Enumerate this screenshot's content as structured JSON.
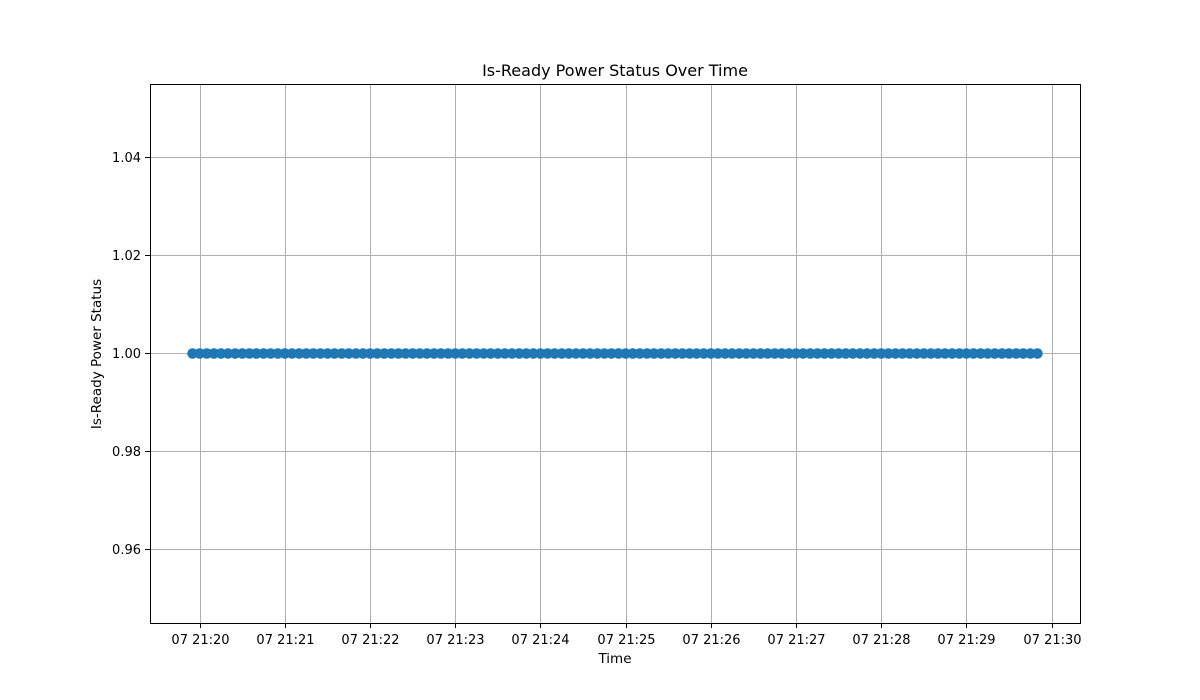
{
  "chart_data": {
    "type": "scatter",
    "title": "Is-Ready Power Status Over Time",
    "xlabel": "Time",
    "ylabel": "Is-Ready Power Status",
    "x_ticks": [
      "07 21:20",
      "07 21:21",
      "07 21:22",
      "07 21:23",
      "07 21:24",
      "07 21:25",
      "07 21:26",
      "07 21:27",
      "07 21:28",
      "07 21:29",
      "07 21:30"
    ],
    "y_ticks": [
      "0.96",
      "0.98",
      "1.00",
      "1.02",
      "1.04"
    ],
    "xlim": [
      "21:19:25",
      "21:30:20"
    ],
    "ylim": [
      0.945,
      1.055
    ],
    "grid": true,
    "series": [
      {
        "color": "#1f77b4",
        "x_start": "21:19:55",
        "x_end": "21:29:50",
        "step_seconds": 5,
        "y": 1.0
      }
    ]
  }
}
